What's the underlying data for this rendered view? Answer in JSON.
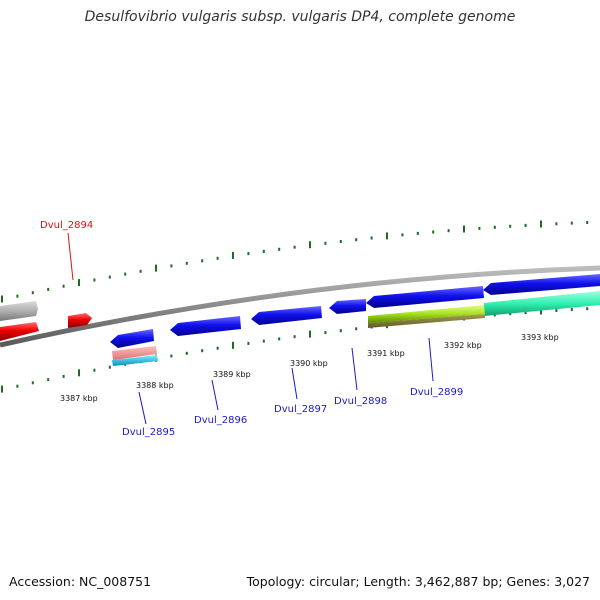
{
  "title": "Desulfovibrio vulgaris subsp. vulgaris DP4, complete genome",
  "footer": {
    "accession": "Accession: NC_008751",
    "summary": "Topology: circular; Length: 3,462,887 bp; Genes: 3,027"
  },
  "colors": {
    "backbone": "#8a8a8a",
    "tick": "#1f6b1f",
    "label_blue": "#1a1acc",
    "label_red": "#dd1111"
  },
  "scale_labels": [
    "3387 kbp",
    "3388 kbp",
    "3389 kbp",
    "3390 kbp",
    "3391 kbp",
    "3392 kbp",
    "3393 kbp"
  ],
  "genes": [
    {
      "name": "Dvul_2894",
      "strand": "forward",
      "color": "#dd1111"
    },
    {
      "name": "Dvul_2895",
      "strand": "reverse",
      "color": "#1a1acc"
    },
    {
      "name": "Dvul_2896",
      "strand": "reverse",
      "color": "#1a1acc"
    },
    {
      "name": "Dvul_2897",
      "strand": "reverse",
      "color": "#1a1acc"
    },
    {
      "name": "Dvul_2898",
      "strand": "reverse",
      "color": "#1a1acc"
    },
    {
      "name": "Dvul_2899",
      "strand": "reverse",
      "color": "#1a1acc"
    }
  ]
}
